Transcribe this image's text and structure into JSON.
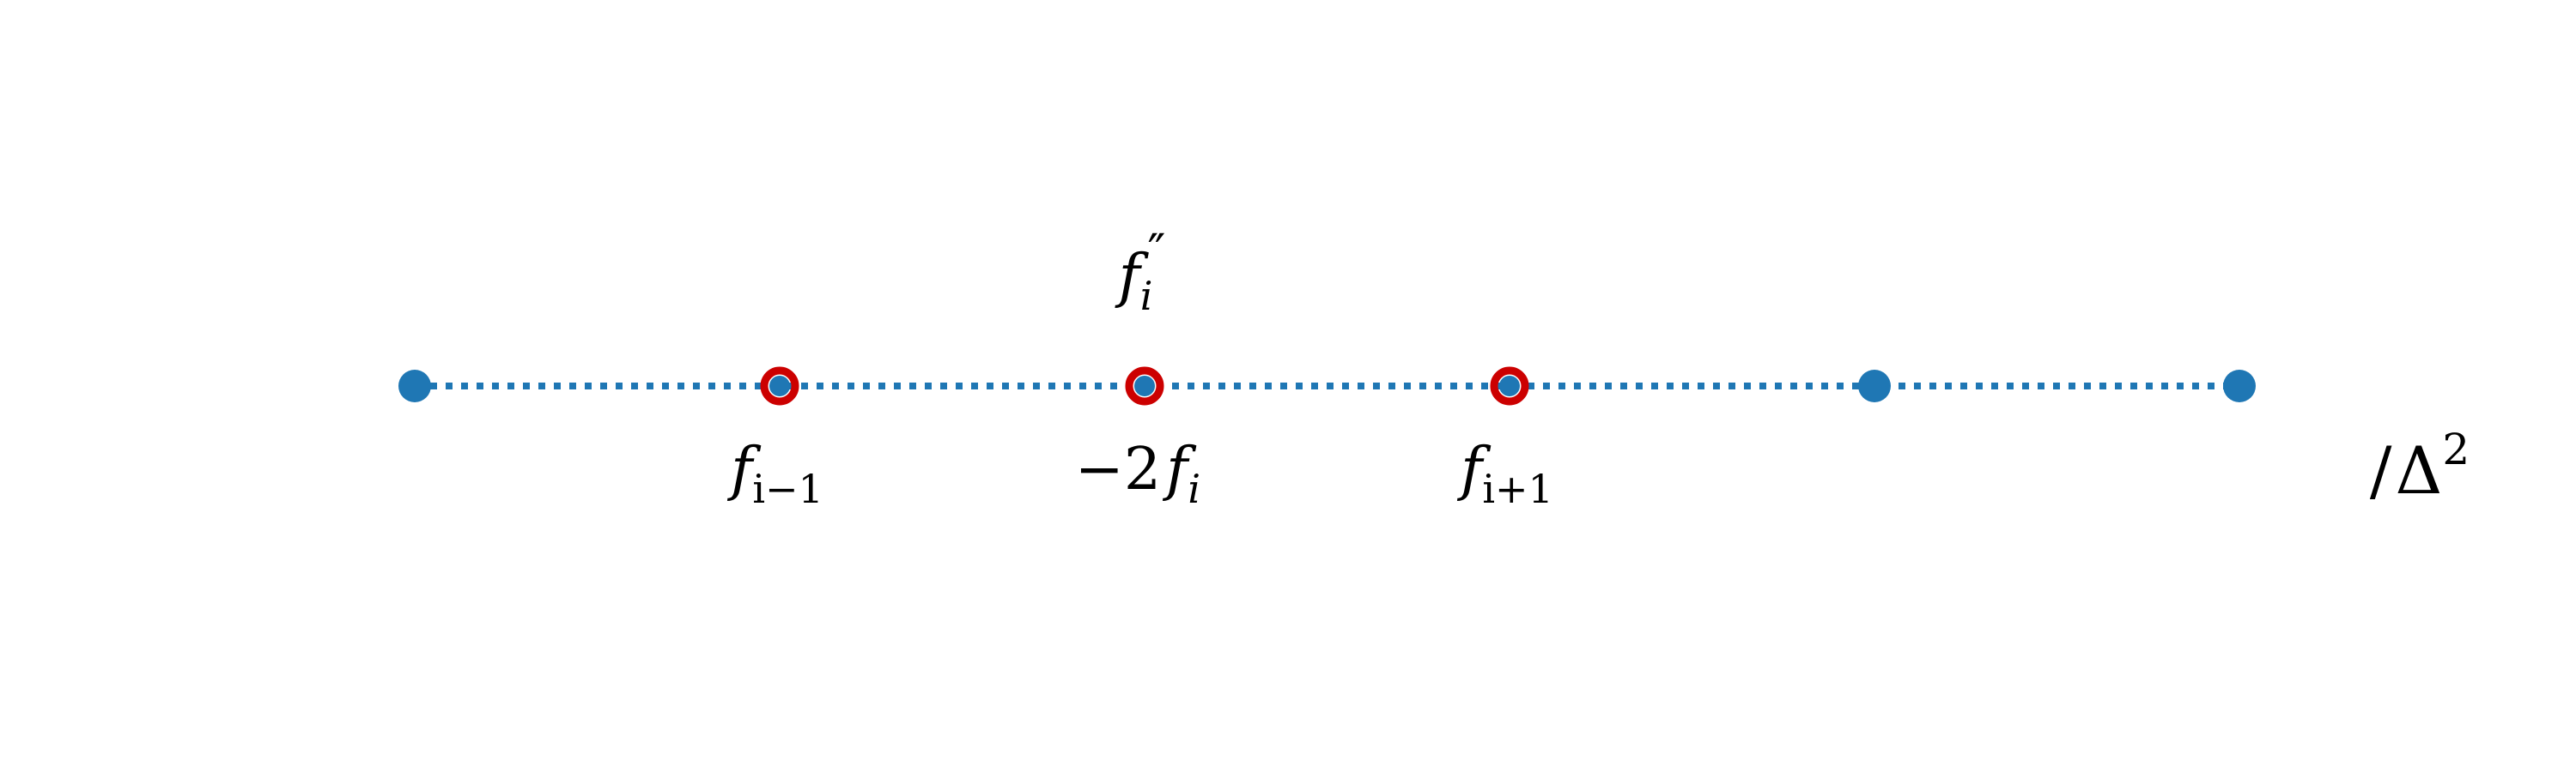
{
  "colors": {
    "grid_point": "#1f77b4",
    "stencil_ring": "#cc0000",
    "text": "#000000",
    "background": "#ffffff"
  },
  "stencil": {
    "total_points": 6,
    "highlighted_points": [
      1,
      2,
      3
    ],
    "top_label": {
      "base": "f",
      "subscript": "i",
      "superscript": "″"
    },
    "labels": [
      {
        "prefix": "",
        "base": "f",
        "subscript": "i−1"
      },
      {
        "prefix": "−2",
        "base": "f",
        "subscript": "i"
      },
      {
        "prefix": "",
        "base": "f",
        "subscript": "i+1"
      }
    ],
    "divisor": {
      "prefix": "/",
      "base": "Δ",
      "superscript": "2"
    }
  }
}
